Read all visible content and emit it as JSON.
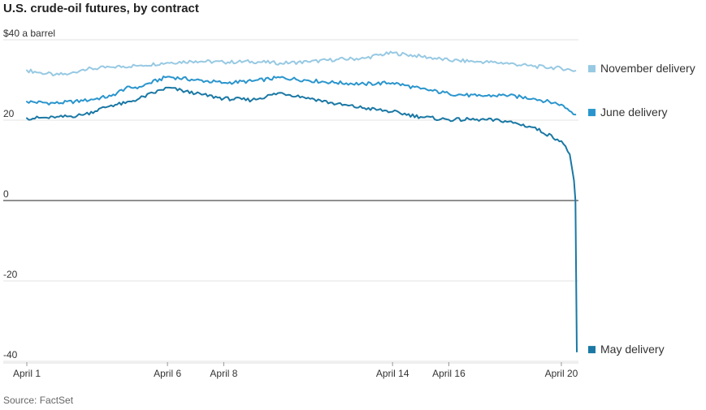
{
  "title": "U.S. crude-oil futures, by contract",
  "source": "Source: FactSet",
  "chart_data": {
    "type": "line",
    "title": "U.S. crude-oil futures, by contract",
    "ylabel": "",
    "ylim": [
      -40,
      40
    ],
    "yticks": [
      {
        "value": 40,
        "label": "$40 a barrel"
      },
      {
        "value": 20,
        "label": "20"
      },
      {
        "value": 0,
        "label": "0"
      },
      {
        "value": -20,
        "label": "-20"
      },
      {
        "value": -40,
        "label": "-40"
      }
    ],
    "xlim": [
      1,
      20.55
    ],
    "xticks": [
      {
        "value": 1,
        "label": "April 1"
      },
      {
        "value": 6,
        "label": "April 6"
      },
      {
        "value": 8,
        "label": "April 8"
      },
      {
        "value": 14,
        "label": "April 14"
      },
      {
        "value": 16,
        "label": "April 16"
      },
      {
        "value": 20,
        "label": "April 20"
      }
    ],
    "grid": true,
    "legend": "right, inline labels",
    "series": [
      {
        "name": "November delivery",
        "color": "#97c9e3",
        "points": [
          [
            1,
            32.4
          ],
          [
            1.5,
            31.8
          ],
          [
            2,
            31.3
          ],
          [
            2.5,
            31.5
          ],
          [
            3,
            32.6
          ],
          [
            4,
            33.2
          ],
          [
            5,
            33.6
          ],
          [
            6,
            34.3
          ],
          [
            7,
            34.7
          ],
          [
            8,
            34.4
          ],
          [
            9,
            34.6
          ],
          [
            10,
            34.2
          ],
          [
            11,
            34.5
          ],
          [
            12,
            35.1
          ],
          [
            13,
            35.4
          ],
          [
            13.5,
            36.2
          ],
          [
            14,
            36.7
          ],
          [
            15,
            35.9
          ],
          [
            16,
            34.9
          ],
          [
            17,
            34.6
          ],
          [
            18,
            34.2
          ],
          [
            19,
            33.4
          ],
          [
            20,
            32.9
          ],
          [
            20.5,
            32.3
          ]
        ]
      },
      {
        "name": "June delivery",
        "color": "#2a95cd",
        "points": [
          [
            1,
            24.6
          ],
          [
            2,
            24.2
          ],
          [
            3,
            24.8
          ],
          [
            4,
            26.0
          ],
          [
            4.5,
            27.9
          ],
          [
            5,
            28.3
          ],
          [
            6,
            30.8
          ],
          [
            7,
            30.0
          ],
          [
            8,
            29.3
          ],
          [
            9,
            29.7
          ],
          [
            10,
            30.6
          ],
          [
            11,
            29.9
          ],
          [
            12,
            29.3
          ],
          [
            13,
            29.0
          ],
          [
            14,
            29.3
          ],
          [
            15,
            27.8
          ],
          [
            16,
            26.6
          ],
          [
            17,
            26.0
          ],
          [
            18,
            26.2
          ],
          [
            19,
            25.4
          ],
          [
            20,
            23.9
          ],
          [
            20.5,
            21.4
          ]
        ]
      },
      {
        "name": "May delivery",
        "color": "#1a78a4",
        "points": [
          [
            1,
            20.5
          ],
          [
            2,
            20.6
          ],
          [
            3,
            21.3
          ],
          [
            4,
            23.7
          ],
          [
            4.5,
            24.2
          ],
          [
            5,
            25.4
          ],
          [
            6,
            28.1
          ],
          [
            7,
            26.6
          ],
          [
            8,
            25.4
          ],
          [
            9,
            25.0
          ],
          [
            10,
            26.8
          ],
          [
            11,
            25.6
          ],
          [
            12,
            24.0
          ],
          [
            13,
            23.0
          ],
          [
            14,
            22.1
          ],
          [
            15,
            20.8
          ],
          [
            16,
            20.1
          ],
          [
            17,
            20.2
          ],
          [
            18,
            19.8
          ],
          [
            19,
            18.2
          ],
          [
            20,
            14.8
          ],
          [
            20.3,
            11.5
          ],
          [
            20.45,
            5
          ],
          [
            20.5,
            0
          ],
          [
            20.55,
            -37.6
          ]
        ]
      }
    ]
  }
}
